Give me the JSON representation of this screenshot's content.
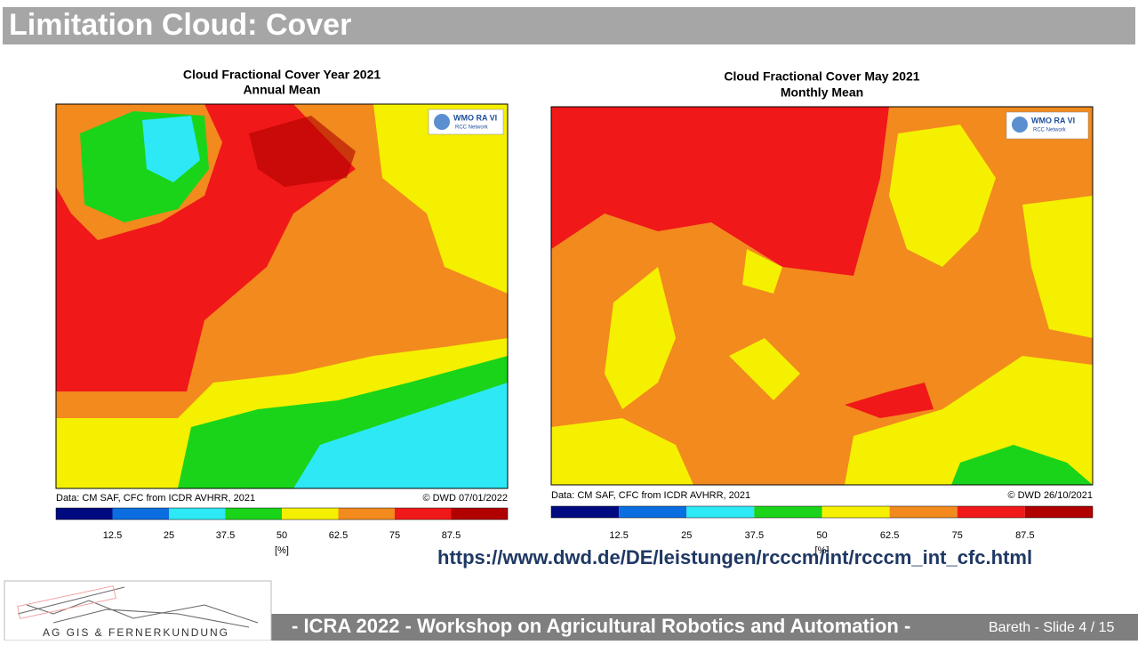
{
  "header": {
    "title": "Limitation Cloud: Cover"
  },
  "panels": [
    {
      "title": "Cloud Fractional Cover Year 2021",
      "subtitle": "Annual Mean",
      "logo": {
        "name": "WMO RA VI",
        "network": "RCC Network"
      },
      "source": "Data: CM SAF, CFC from ICDR AVHRR, 2021",
      "credit": "© DWD 07/01/2022",
      "colorbar": {
        "colors": [
          "#000a80",
          "#0a6ee0",
          "#2de8f5",
          "#1ad41a",
          "#f5f000",
          "#f28a1e",
          "#f01818",
          "#b00000"
        ],
        "ticks": [
          12.5,
          25,
          37.5,
          50,
          62.5,
          75,
          87.5
        ],
        "unit": "[%]"
      }
    },
    {
      "title": "Cloud Fractional Cover May 2021",
      "subtitle": "Monthly Mean",
      "logo": {
        "name": "WMO RA VI",
        "network": "RCC Network"
      },
      "source": "Data: CM SAF, CFC from ICDR AVHRR, 2021",
      "credit": "© DWD 26/10/2021",
      "colorbar": {
        "colors": [
          "#000a80",
          "#0a6ee0",
          "#2de8f5",
          "#1ad41a",
          "#f5f000",
          "#f28a1e",
          "#f01818",
          "#b00000"
        ],
        "ticks": [
          12.5,
          25,
          37.5,
          50,
          62.5,
          75,
          87.5
        ],
        "unit": "[%]"
      }
    }
  ],
  "link": "https://www.dwd.de/DE/leistungen/rcccm/int/rcccm_int_cfc.html",
  "footer": {
    "logo": "AG GIS & FERNERKUNDUNG",
    "event": "- ICRA 2022 - Workshop on Agricultural Robotics and Automation -",
    "slide": "Bareth - Slide 4 / 15"
  }
}
